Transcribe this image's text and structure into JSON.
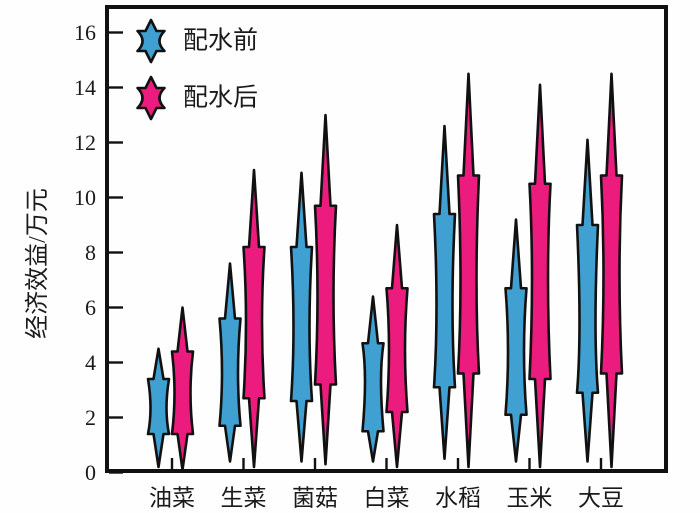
{
  "chart_data": {
    "type": "violin",
    "title": "",
    "xlabel": "",
    "ylabel": "经济效益/万元",
    "ylim": [
      0,
      16
    ],
    "yticks": [
      0,
      2,
      4,
      6,
      8,
      10,
      12,
      14,
      16
    ],
    "categories": [
      "油菜",
      "生菜",
      "菌菇",
      "白菜",
      "水稻",
      "玉米",
      "大豆"
    ],
    "grid": false,
    "frame": "box",
    "legend": {
      "position": "top-left",
      "entries": [
        {
          "label": "配水前",
          "color": "#41A0D2"
        },
        {
          "label": "配水后",
          "color": "#EC1C7E"
        }
      ]
    },
    "series": [
      {
        "name": "配水前",
        "color": "#41A0D2",
        "values": [
          {
            "max": 4.5,
            "q3": 3.4,
            "median": 2.3,
            "q1": 1.4,
            "min": 0.2
          },
          {
            "max": 7.6,
            "q3": 5.6,
            "median": 3.6,
            "q1": 1.7,
            "min": 0.4
          },
          {
            "max": 10.9,
            "q3": 8.2,
            "median": 5.2,
            "q1": 2.6,
            "min": 0.4
          },
          {
            "max": 6.4,
            "q3": 4.7,
            "median": 3.5,
            "q1": 1.5,
            "min": 0.4
          },
          {
            "max": 12.6,
            "q3": 9.4,
            "median": 5.9,
            "q1": 3.1,
            "min": 0.5
          },
          {
            "max": 9.2,
            "q3": 6.7,
            "median": 4.4,
            "q1": 2.1,
            "min": 0.4
          },
          {
            "max": 12.1,
            "q3": 9.0,
            "median": 5.1,
            "q1": 2.9,
            "min": 0.4
          }
        ]
      },
      {
        "name": "配水后",
        "color": "#EC1C7E",
        "values": [
          {
            "max": 6.0,
            "q3": 4.4,
            "median": 2.9,
            "q1": 1.4,
            "min": 0.1
          },
          {
            "max": 11.0,
            "q3": 8.2,
            "median": 5.5,
            "q1": 2.7,
            "min": 0.2
          },
          {
            "max": 13.0,
            "q3": 9.7,
            "median": 6.4,
            "q1": 3.2,
            "min": 0.3
          },
          {
            "max": 9.0,
            "q3": 6.7,
            "median": 4.5,
            "q1": 2.2,
            "min": 0.2
          },
          {
            "max": 14.5,
            "q3": 10.8,
            "median": 6.8,
            "q1": 3.6,
            "min": 0.2
          },
          {
            "max": 14.1,
            "q3": 10.5,
            "median": 7.1,
            "q1": 3.4,
            "min": 0.2
          },
          {
            "max": 14.5,
            "q3": 10.8,
            "median": 7.2,
            "q1": 3.6,
            "min": 0.2
          }
        ]
      }
    ],
    "colors": {
      "stroke": "#111111",
      "background": "#fefefe",
      "text": "#1a1a1a"
    }
  }
}
